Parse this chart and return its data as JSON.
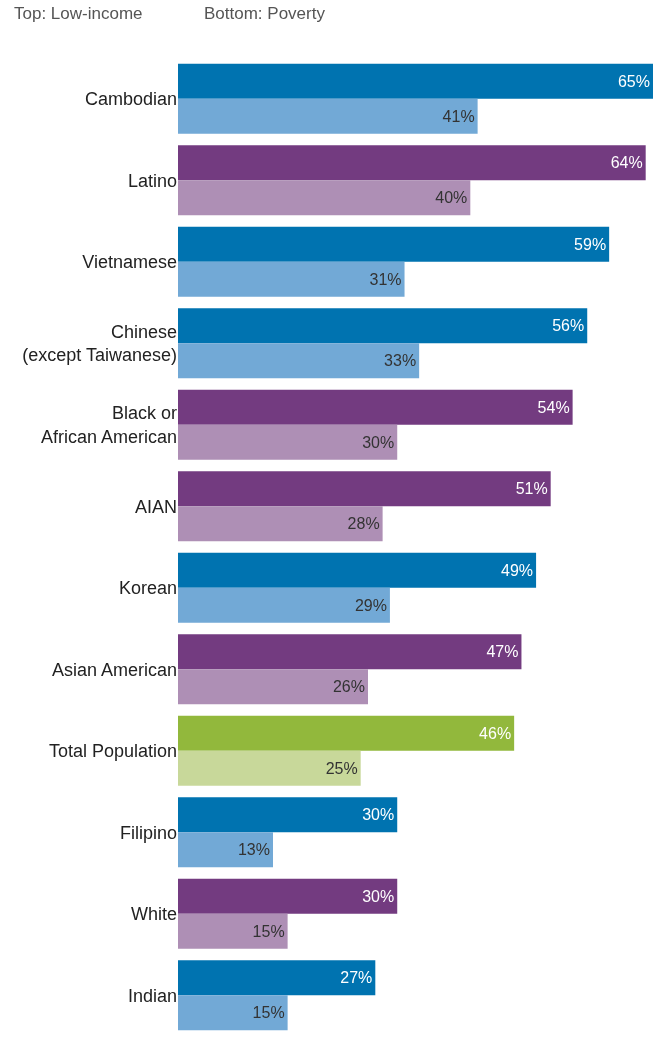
{
  "chart_data": {
    "type": "bar",
    "orientation": "horizontal",
    "tick_labels": "y",
    "annotations": [
      "Top: Low-income",
      "Bottom: Poverty"
    ],
    "categories": [
      "Cambodian",
      "Latino",
      "Vietnamese",
      "Chinese\n(except Taiwanese)",
      "Black or\nAfrican American",
      "AIAN",
      "Korean",
      "Asian American",
      "Total Population",
      "Filipino",
      "White",
      "Indian"
    ],
    "xlim": [
      0,
      65
    ],
    "series": [
      {
        "values": [
          65,
          64,
          59,
          56,
          54,
          51,
          49,
          47,
          46,
          30,
          30,
          27
        ],
        "colors": [
          "#0073b0",
          "#733b80",
          "#0073b0",
          "#0073b0",
          "#733b80",
          "#733b80",
          "#0073b0",
          "#733b80",
          "#92b83c",
          "#0073b0",
          "#733b80",
          "#0073b0"
        ],
        "value_labels": [
          "65%",
          "64%",
          "59%",
          "56%",
          "54%",
          "51%",
          "49%",
          "47%",
          "46%",
          "30%",
          "30%",
          "27%"
        ]
      },
      {
        "values": [
          41,
          40,
          31,
          33,
          30,
          28,
          29,
          26,
          25,
          13,
          15,
          15
        ],
        "colors": [
          "#72a9d6",
          "#ae8fb5",
          "#72a9d6",
          "#72a9d6",
          "#ae8fb5",
          "#ae8fb5",
          "#72a9d6",
          "#ae8fb5",
          "#c8d89a",
          "#72a9d6",
          "#ae8fb5",
          "#72a9d6"
        ],
        "value_labels": [
          "41%",
          "40%",
          "31%",
          "33%",
          "30%",
          "28%",
          "29%",
          "26%",
          "25%",
          "13%",
          "15%",
          "15%"
        ]
      }
    ]
  }
}
